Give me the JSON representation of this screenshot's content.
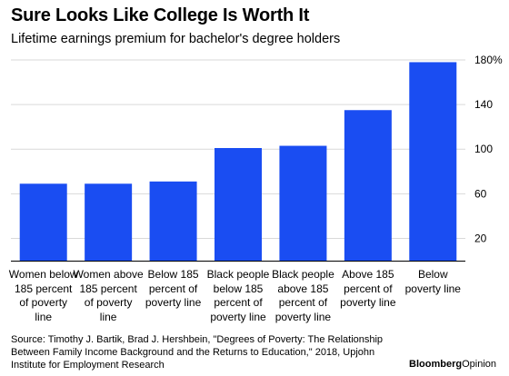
{
  "chart_data": {
    "type": "bar",
    "title": "Sure Looks Like College Is Worth It",
    "subtitle": "Lifetime earnings premium for bachelor's degree holders",
    "categories": [
      [
        "Women below",
        "185 percent",
        "of poverty",
        "line"
      ],
      [
        "Women above",
        "185 percent",
        "of poverty",
        "line"
      ],
      [
        "Below 185",
        "percent of",
        "poverty line"
      ],
      [
        "Black people",
        "below 185",
        "percent of",
        "poverty line"
      ],
      [
        "Black people",
        "above 185",
        "percent of",
        "poverty line"
      ],
      [
        "Above 185",
        "percent of",
        "poverty line"
      ],
      [
        "Below",
        "poverty line"
      ]
    ],
    "values": [
      69,
      69,
      71,
      101,
      103,
      135,
      178
    ],
    "ylim": [
      0,
      180
    ],
    "yticks": [
      20,
      60,
      100,
      140,
      180
    ],
    "ytick_labels": [
      "20",
      "60",
      "100",
      "140",
      "180%"
    ],
    "grid": true,
    "bar_color": "#1a4df2",
    "source": "Source: Timothy J. Bartik, Brad J. Hershbein, \"Degrees of Poverty: The Relationship Between Family Income Background and the Returns to Education,\" 2018, Upjohn Institute for Employment Research"
  },
  "brand": {
    "name": "Bloomberg",
    "suffix": "Opinion"
  }
}
